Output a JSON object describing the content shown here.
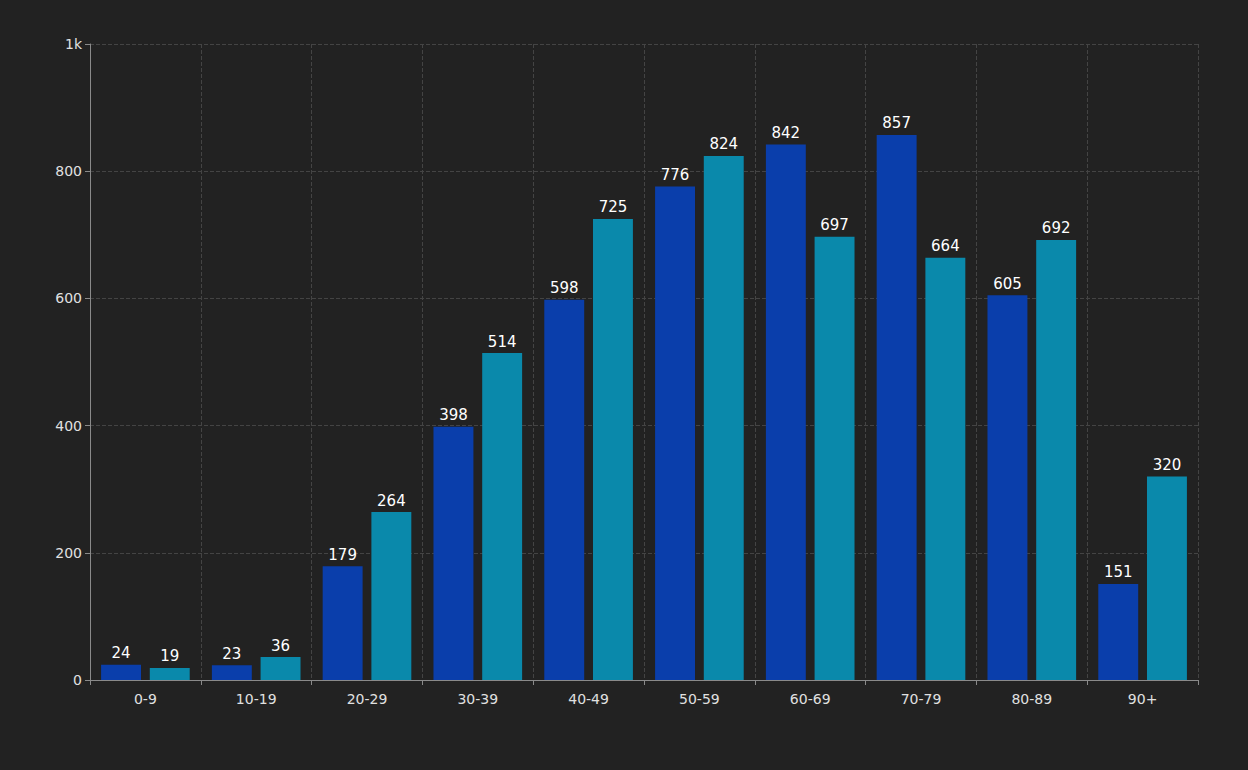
{
  "chart_data": {
    "type": "bar",
    "categories": [
      "0-9",
      "10-19",
      "20-29",
      "30-39",
      "40-49",
      "50-59",
      "60-69",
      "70-79",
      "80-89",
      "90+"
    ],
    "series": [
      {
        "color": "#0a3eab",
        "values": [
          24,
          23,
          179,
          398,
          598,
          776,
          842,
          857,
          605,
          151
        ]
      },
      {
        "color": "#0a89ab",
        "values": [
          19,
          36,
          264,
          514,
          725,
          824,
          697,
          664,
          692,
          320
        ]
      }
    ],
    "ylim": [
      0,
      1000
    ],
    "yticks": [
      0,
      200,
      400,
      600,
      800,
      {
        "value": 1000,
        "label": "1k"
      }
    ],
    "grid": true,
    "data_labels": true
  }
}
